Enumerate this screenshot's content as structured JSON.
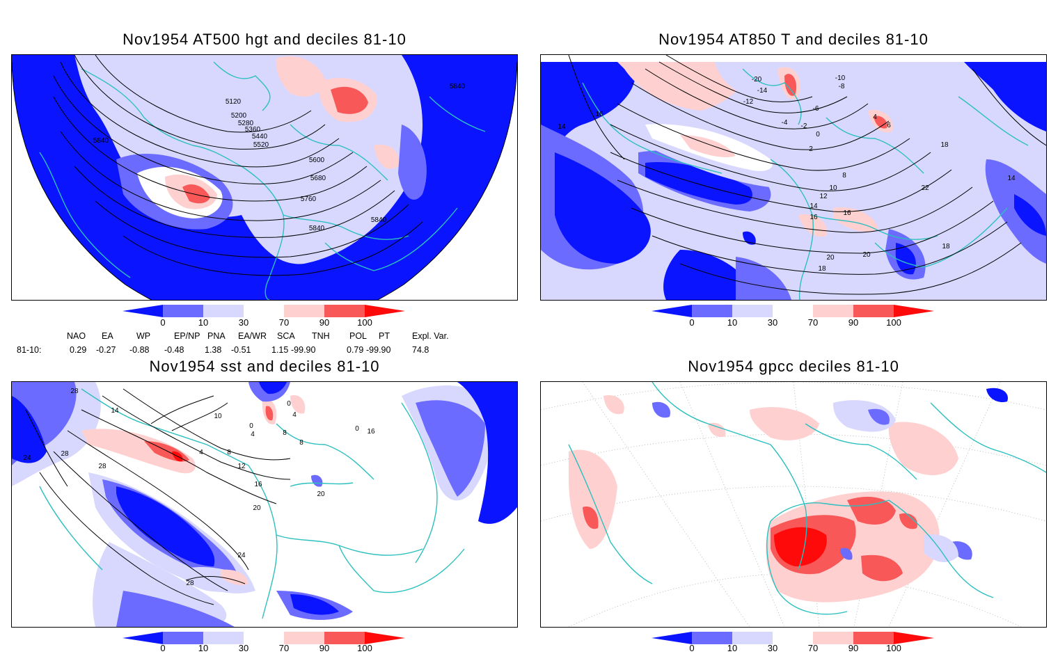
{
  "colors": {
    "frame": "#000000",
    "coast": "#2cbfbf",
    "contour": "#000000",
    "d_0_10": "#0a14ff",
    "d_10_30": "#6b6bff",
    "d_30_50": "#d8d8ff",
    "d_50_70": "#ffffff",
    "d_70_90": "#ffd0d0",
    "d_90_100": "#f85858",
    "d_100": "#ff0a0a"
  },
  "colorbar": {
    "ticks": [
      "0",
      "10",
      "30",
      "70",
      "90",
      "100"
    ]
  },
  "panels": [
    {
      "id": "hgt",
      "title": "Nov1954 AT500 hgt and deciles 81-10",
      "contour_labels": [
        "5120",
        "5200",
        "5280",
        "5360",
        "5440",
        "5520",
        "5600",
        "5680",
        "5760",
        "5840",
        "5840",
        "5840",
        "5840"
      ]
    },
    {
      "id": "t850",
      "title": "Nov1954 AT850 T and deciles 81-10",
      "contour_labels": [
        "-20",
        "-14",
        "-12",
        "-10",
        "-8",
        "-6",
        "-4",
        "-2",
        "0",
        "2",
        "4",
        "6",
        "8",
        "10",
        "12",
        "14",
        "16",
        "16",
        "18",
        "18",
        "20",
        "20",
        "22",
        "14",
        "14",
        "16",
        "18"
      ]
    },
    {
      "id": "sst",
      "title": "Nov1954 sst and deciles 81-10",
      "contour_labels": [
        "28",
        "24",
        "28",
        "28",
        "14",
        "10",
        "4",
        "8",
        "12",
        "16",
        "20",
        "20",
        "24",
        "28",
        "0",
        "4",
        "0",
        "4",
        "8",
        "0",
        "8",
        "16"
      ]
    },
    {
      "id": "gpcc",
      "title": "Nov1954 gpcc deciles 81-10",
      "contour_labels": []
    }
  ],
  "teleconnections": {
    "row_label": "81-10:",
    "headers": [
      "NAO",
      "EA",
      "WP",
      "EP/NP",
      "PNA",
      "EA/WR",
      "SCA",
      "TNH",
      "POL",
      "PT",
      "Expl. Var."
    ],
    "values": [
      "0.29",
      "-0.27",
      "-0.88",
      "-0.48",
      "1.38",
      "-0.51",
      "1.15",
      "-99.90",
      "0.79",
      "-99.90",
      "74.8"
    ]
  }
}
